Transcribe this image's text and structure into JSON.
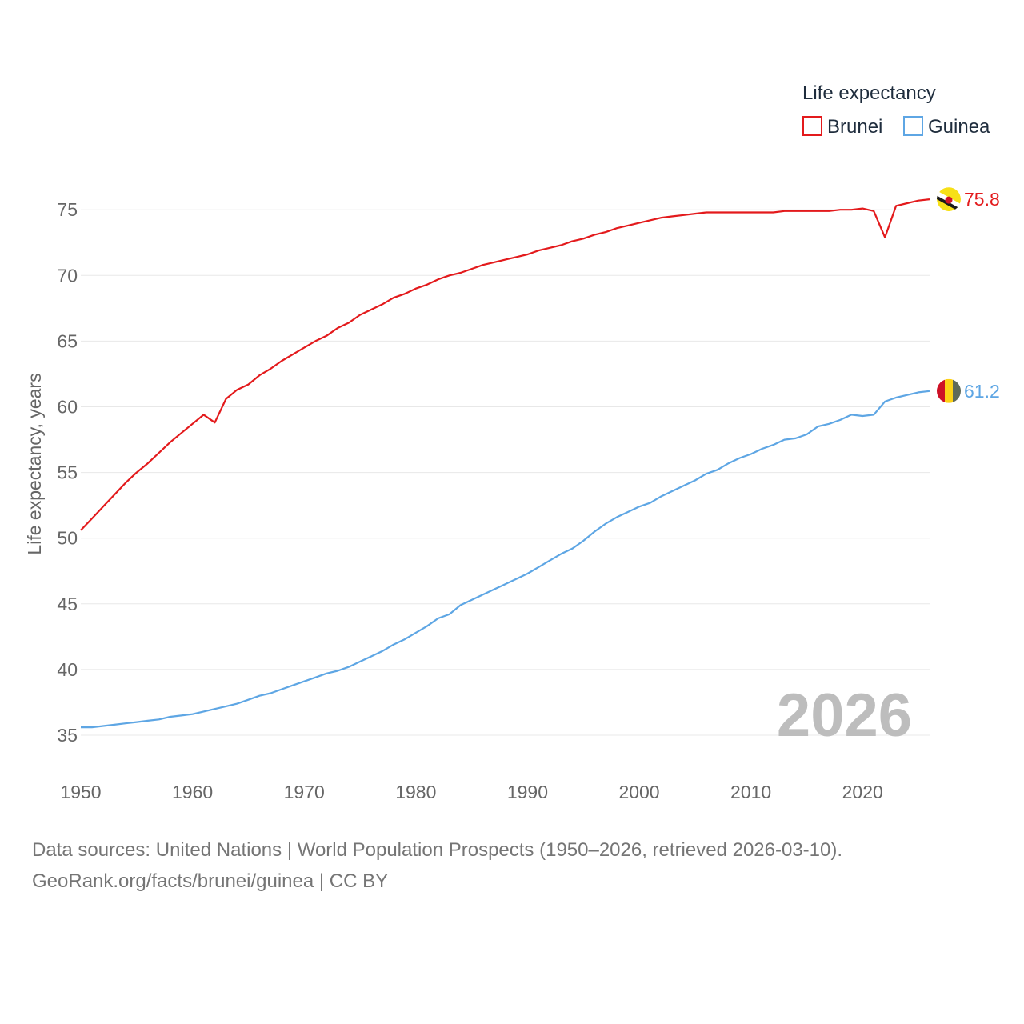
{
  "chart_data": {
    "type": "line",
    "legend_title": "Life expectancy",
    "legend_position": "top-right",
    "ylabel": "Life expectancy, years",
    "xlabel": "",
    "xlim": [
      1950,
      2026
    ],
    "ylim": [
      33,
      77
    ],
    "x_ticks": [
      1950,
      1960,
      1970,
      1980,
      1990,
      2000,
      2010,
      2020
    ],
    "y_ticks": [
      35,
      40,
      45,
      50,
      55,
      60,
      65,
      70,
      75
    ],
    "grid": "horizontal",
    "year_badge": "2026",
    "x": [
      1950,
      1951,
      1952,
      1953,
      1954,
      1955,
      1956,
      1957,
      1958,
      1959,
      1960,
      1961,
      1962,
      1963,
      1964,
      1965,
      1966,
      1967,
      1968,
      1969,
      1970,
      1971,
      1972,
      1973,
      1974,
      1975,
      1976,
      1977,
      1978,
      1979,
      1980,
      1981,
      1982,
      1983,
      1984,
      1985,
      1986,
      1987,
      1988,
      1989,
      1990,
      1991,
      1992,
      1993,
      1994,
      1995,
      1996,
      1997,
      1998,
      1999,
      2000,
      2001,
      2002,
      2003,
      2004,
      2005,
      2006,
      2007,
      2008,
      2009,
      2010,
      2011,
      2012,
      2013,
      2014,
      2015,
      2016,
      2017,
      2018,
      2019,
      2020,
      2021,
      2022,
      2023,
      2024,
      2025,
      2026
    ],
    "series": [
      {
        "name": "Brunei",
        "color": "#e31a1c",
        "end_label": "75.8",
        "flag": "brunei-flag-icon",
        "values": [
          50.6,
          51.5,
          52.4,
          53.3,
          54.2,
          55.0,
          55.7,
          56.5,
          57.3,
          58.0,
          58.7,
          59.4,
          58.8,
          60.6,
          61.3,
          61.7,
          62.4,
          62.9,
          63.5,
          64.0,
          64.5,
          65.0,
          65.4,
          66.0,
          66.4,
          67.0,
          67.4,
          67.8,
          68.3,
          68.6,
          69.0,
          69.3,
          69.7,
          70.0,
          70.2,
          70.5,
          70.8,
          71.0,
          71.2,
          71.4,
          71.6,
          71.9,
          72.1,
          72.3,
          72.6,
          72.8,
          73.1,
          73.3,
          73.6,
          73.8,
          74.0,
          74.2,
          74.4,
          74.5,
          74.6,
          74.7,
          74.8,
          74.8,
          74.8,
          74.8,
          74.8,
          74.8,
          74.8,
          74.9,
          74.9,
          74.9,
          74.9,
          74.9,
          75.0,
          75.0,
          75.1,
          74.9,
          72.9,
          75.3,
          75.5,
          75.7,
          75.8
        ]
      },
      {
        "name": "Guinea",
        "color": "#5ea6e4",
        "end_label": "61.2",
        "flag": "guinea-flag-icon",
        "values": [
          35.6,
          35.6,
          35.7,
          35.8,
          35.9,
          36.0,
          36.1,
          36.2,
          36.4,
          36.5,
          36.6,
          36.8,
          37.0,
          37.2,
          37.4,
          37.7,
          38.0,
          38.2,
          38.5,
          38.8,
          39.1,
          39.4,
          39.7,
          39.9,
          40.2,
          40.6,
          41.0,
          41.4,
          41.9,
          42.3,
          42.8,
          43.3,
          43.9,
          44.2,
          44.9,
          45.3,
          45.7,
          46.1,
          46.5,
          46.9,
          47.3,
          47.8,
          48.3,
          48.8,
          49.2,
          49.8,
          50.5,
          51.1,
          51.6,
          52.0,
          52.4,
          52.7,
          53.2,
          53.6,
          54.0,
          54.4,
          54.9,
          55.2,
          55.7,
          56.1,
          56.4,
          56.8,
          57.1,
          57.5,
          57.6,
          57.9,
          58.5,
          58.7,
          59.0,
          59.4,
          59.3,
          59.4,
          60.4,
          60.7,
          60.9,
          61.1,
          61.2
        ]
      }
    ]
  },
  "sources": {
    "line1": "Data sources: United Nations | World Population Prospects (1950–2026, retrieved 2026-03-10).",
    "line2": "GeoRank.org/facts/brunei/guinea | CC BY"
  }
}
